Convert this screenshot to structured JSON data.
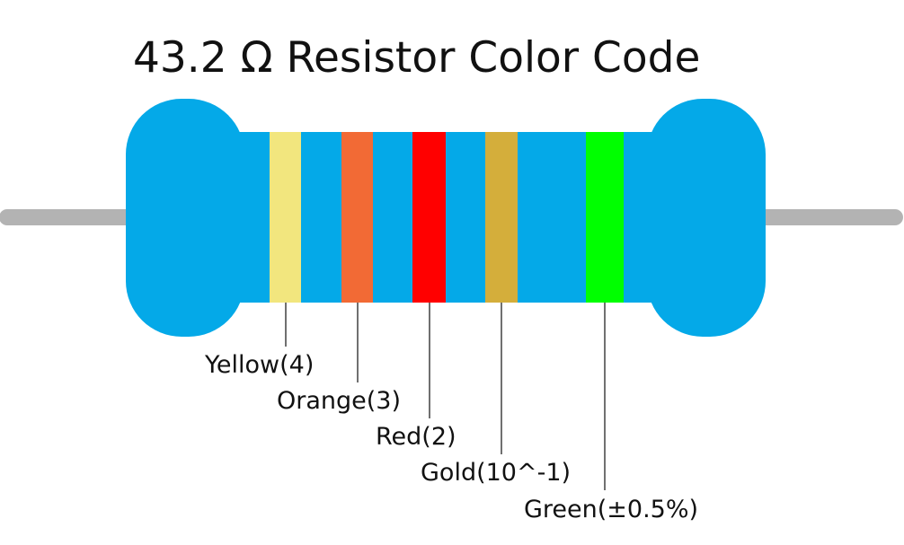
{
  "title": "43.2 Ω Resistor Color Code",
  "bands": [
    {
      "label": "Yellow(4)"
    },
    {
      "label": "Orange(3)"
    },
    {
      "label": "Red(2)"
    },
    {
      "label": "Gold(10^-1)"
    },
    {
      "label": "Green(±0.5%)"
    }
  ]
}
